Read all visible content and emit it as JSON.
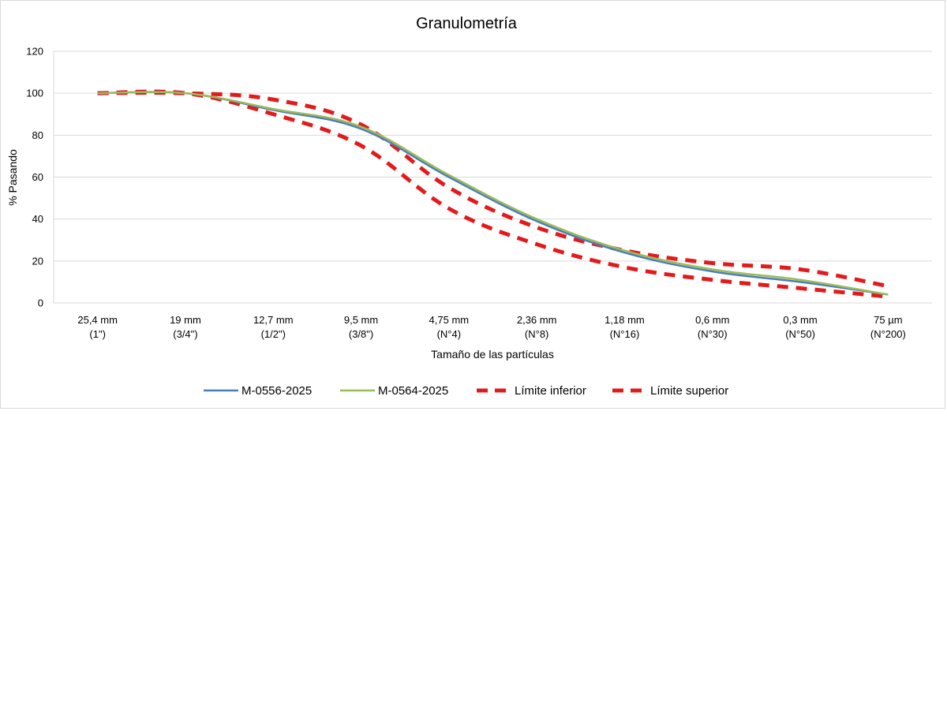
{
  "chart_data": {
    "type": "line",
    "title": "Granulometría",
    "xlabel": "Tamaño de las partículas",
    "ylabel": "% Pasando",
    "ylim": [
      0,
      120
    ],
    "yticks": [
      0,
      20,
      40,
      60,
      80,
      100,
      120
    ],
    "grid": true,
    "legend_position": "bottom",
    "categories": [
      [
        "25,4 mm",
        "(1\")"
      ],
      [
        "19 mm",
        "(3/4\")"
      ],
      [
        "12,7 mm",
        "(1/2\")"
      ],
      [
        "9,5 mm",
        "(3/8\")"
      ],
      [
        "4,75 mm",
        "(N°4)"
      ],
      [
        "2,36 mm",
        "(N°8)"
      ],
      [
        "1,18 mm",
        "(N°16)"
      ],
      [
        "0,6 mm",
        "(N°30)"
      ],
      [
        "0,3 mm",
        "(N°50)"
      ],
      [
        "75 µm",
        "(N°200)"
      ]
    ],
    "series": [
      {
        "name": "M-0556-2025",
        "color": "#4a7ebb",
        "style": "solid",
        "values": [
          100,
          100,
          92,
          83,
          60,
          39,
          24,
          15,
          10,
          4
        ]
      },
      {
        "name": "M-0564-2025",
        "color": "#9bbb59",
        "style": "solid",
        "values": [
          100,
          100,
          92.5,
          84,
          61,
          40,
          25,
          16,
          11,
          4
        ]
      },
      {
        "name": "Límite inferior",
        "color": "#e31a1c",
        "style": "dashed",
        "values": [
          100,
          100,
          90,
          75,
          45,
          28,
          17,
          11,
          7,
          3
        ]
      },
      {
        "name": "Límite superior",
        "color": "#e31a1c",
        "style": "dashed",
        "values": [
          100,
          100,
          97,
          85,
          55,
          36,
          25,
          19,
          16,
          8
        ]
      }
    ]
  }
}
